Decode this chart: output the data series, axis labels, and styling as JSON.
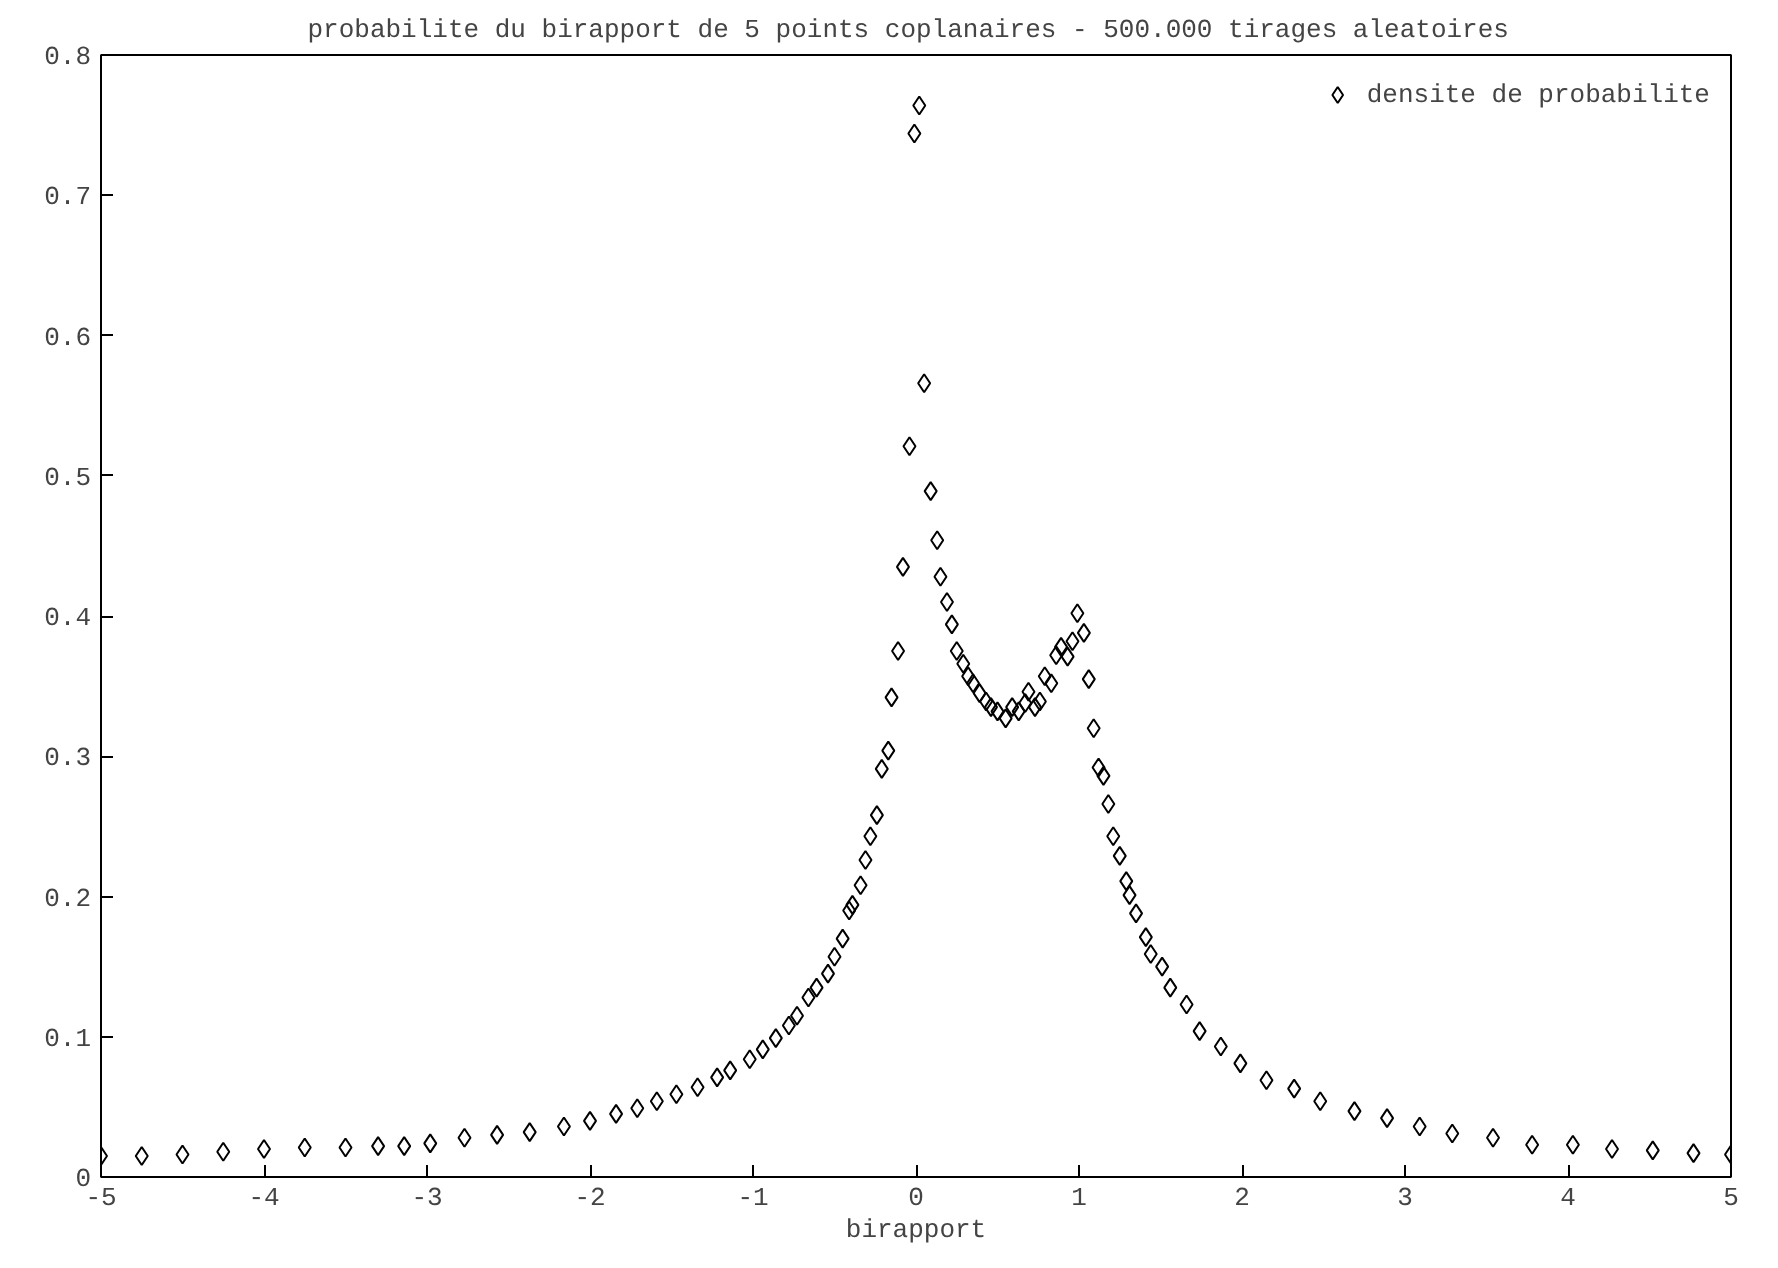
{
  "chart_data": {
    "type": "scatter",
    "title": "probabilite du  birapport de 5 points coplanaires - 500.000 tirages aleatoires",
    "xlabel": "birapport",
    "xlim": [
      -5,
      5
    ],
    "ylim": [
      0,
      0.8
    ],
    "xticks": [
      -5,
      -4,
      -3,
      -2,
      -1,
      0,
      1,
      2,
      3,
      4,
      5
    ],
    "yticks": [
      0,
      0.1,
      0.2,
      0.3,
      0.4,
      0.5,
      0.6,
      0.7,
      0.8
    ],
    "grid": false,
    "legend": "top right",
    "marker": "diamond",
    "series": [
      {
        "name": "densite de probabilite",
        "color": "#000000",
        "x": [
          -5.0,
          -4.75,
          -4.5,
          -4.25,
          -4.0,
          -3.75,
          -3.5,
          -3.3,
          -3.14,
          -2.98,
          -2.77,
          -2.57,
          -2.37,
          -2.16,
          -2.0,
          -1.84,
          -1.71,
          -1.59,
          -1.47,
          -1.34,
          -1.22,
          -1.14,
          -1.02,
          -0.94,
          -0.86,
          -0.78,
          -0.73,
          -0.66,
          -0.61,
          -0.54,
          -0.5,
          -0.45,
          -0.41,
          -0.39,
          -0.34,
          -0.31,
          -0.28,
          -0.24,
          -0.21,
          -0.17,
          -0.15,
          -0.11,
          -0.08,
          -0.04,
          -0.01,
          0.02,
          0.05,
          0.09,
          0.13,
          0.15,
          0.19,
          0.22,
          0.25,
          0.29,
          0.32,
          0.35,
          0.39,
          0.43,
          0.46,
          0.5,
          0.55,
          0.59,
          0.63,
          0.67,
          0.69,
          0.73,
          0.76,
          0.79,
          0.83,
          0.86,
          0.89,
          0.93,
          0.96,
          0.99,
          1.03,
          1.06,
          1.09,
          1.12,
          1.15,
          1.18,
          1.21,
          1.25,
          1.29,
          1.31,
          1.35,
          1.41,
          1.44,
          1.51,
          1.56,
          1.66,
          1.74,
          1.87,
          1.99,
          2.15,
          2.32,
          2.48,
          2.69,
          2.89,
          3.09,
          3.29,
          3.54,
          3.78,
          4.03,
          4.27,
          4.52,
          4.77,
          5.0
        ],
        "values": [
          0.015,
          0.015,
          0.016,
          0.018,
          0.02,
          0.021,
          0.021,
          0.022,
          0.022,
          0.024,
          0.028,
          0.03,
          0.032,
          0.036,
          0.04,
          0.045,
          0.049,
          0.054,
          0.059,
          0.064,
          0.071,
          0.076,
          0.084,
          0.091,
          0.099,
          0.108,
          0.115,
          0.128,
          0.135,
          0.145,
          0.157,
          0.17,
          0.19,
          0.194,
          0.208,
          0.226,
          0.243,
          0.258,
          0.291,
          0.304,
          0.342,
          0.375,
          0.435,
          0.521,
          0.744,
          0.764,
          0.566,
          0.489,
          0.454,
          0.428,
          0.41,
          0.394,
          0.375,
          0.366,
          0.357,
          0.352,
          0.345,
          0.339,
          0.335,
          0.332,
          0.327,
          0.335,
          0.332,
          0.338,
          0.346,
          0.335,
          0.339,
          0.357,
          0.352,
          0.372,
          0.378,
          0.371,
          0.382,
          0.402,
          0.388,
          0.355,
          0.32,
          0.292,
          0.286,
          0.266,
          0.243,
          0.229,
          0.211,
          0.201,
          0.188,
          0.171,
          0.159,
          0.15,
          0.135,
          0.123,
          0.104,
          0.093,
          0.081,
          0.069,
          0.063,
          0.054,
          0.047,
          0.042,
          0.036,
          0.031,
          0.028,
          0.023,
          0.023,
          0.02,
          0.019,
          0.017,
          0.016
        ]
      }
    ]
  }
}
